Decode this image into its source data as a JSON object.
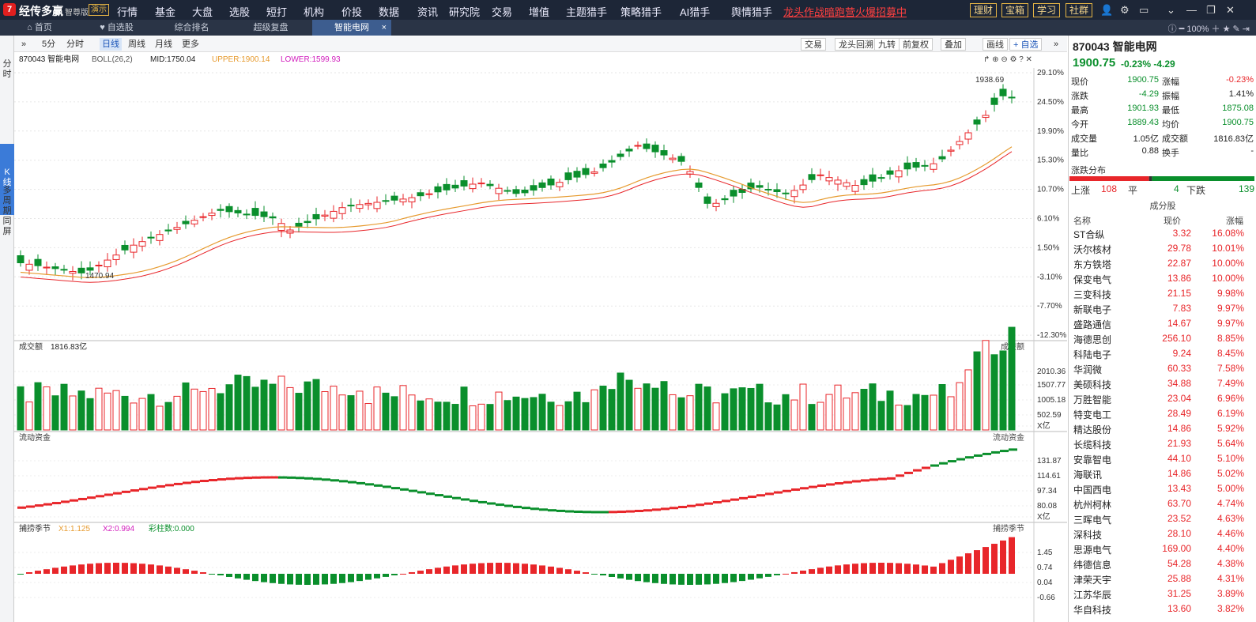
{
  "app": {
    "name": "经传多赢",
    "edition": "智尊版",
    "demo": "演示"
  },
  "menu": [
    "行情",
    "基金",
    "大盘",
    "选股",
    "短打",
    "机构",
    "价投",
    "数据",
    "资讯",
    "研究院",
    "交易",
    "增值",
    "主题猎手",
    "策略猎手",
    "AI猎手",
    "舆情猎手"
  ],
  "promo": "龙头作战暗跑营火爆招募中",
  "top_buttons": [
    "理财",
    "宝箱",
    "学习",
    "社群"
  ],
  "tabs": [
    "首页",
    "自选股",
    "综合排名",
    "超级复盘",
    "智能电网"
  ],
  "zoom": "100%",
  "left_strip": {
    "fenshi": "分时",
    "kxian": "K线",
    "duozhouqi": "多周期同屏"
  },
  "toolbar": {
    "periods": [
      "5分",
      "分时",
      "日线",
      "周线",
      "月线",
      "更多"
    ],
    "right": [
      "交易",
      "龙头回溯",
      "九转",
      "前复权",
      "叠加",
      "画线",
      "自选"
    ]
  },
  "main_legend": {
    "title": "870043 智能电网",
    "boll": "BOLL(26,2)",
    "mid": "MID:1750.04",
    "upper": "UPPER:1900.14",
    "lower": "LOWER:1599.93"
  },
  "y_axis": [
    "29.10%",
    "24.50%",
    "19.90%",
    "15.30%",
    "10.70%",
    "6.10%",
    "1.50%",
    "-3.10%",
    "-7.70%",
    "-12.30%"
  ],
  "hi_label": "1938.69",
  "lo_label": "1470.94",
  "vol": {
    "title": "成交额",
    "value": "1816.83亿",
    "axis": [
      "2010.36",
      "1507.77",
      "1005.18",
      "502.59",
      "X亿"
    ]
  },
  "flow": {
    "title": "流动资金",
    "axis": [
      "131.87",
      "114.61",
      "97.34",
      "80.08",
      "X亿"
    ]
  },
  "ind": {
    "title": "捕捞季节",
    "x1": "X1:1.125",
    "x2": "X2:0.994",
    "bar": "彩柱数:0.000",
    "axis": [
      "1.45",
      "0.74",
      "0.04",
      "-0.66"
    ]
  },
  "colors": {
    "up": "#e8262a",
    "down": "#0a8f2c",
    "accent": "#3b7bd8",
    "bg_dark": "#1d2637"
  },
  "quote": {
    "title": "870043 智能电网",
    "price": "1900.75",
    "chg_pct": "-0.23%",
    "chg": "-4.29",
    "rows": [
      {
        "l": "现价",
        "v": "1900.75",
        "l2": "涨幅",
        "v2": "-0.23%",
        "c": "green",
        "c2": "red"
      },
      {
        "l": "涨跌",
        "v": "-4.29",
        "l2": "振幅",
        "v2": "1.41%",
        "c": "green",
        "c2": "dark"
      },
      {
        "l": "最高",
        "v": "1901.93",
        "l2": "最低",
        "v2": "1875.08",
        "c": "green",
        "c2": "green"
      },
      {
        "l": "今开",
        "v": "1889.43",
        "l2": "均价",
        "v2": "1900.75",
        "c": "green",
        "c2": "green"
      },
      {
        "l": "成交量",
        "v": "1.05亿",
        "l2": "成交额",
        "v2": "1816.83亿",
        "c": "dark",
        "c2": "dark"
      },
      {
        "l": "量比",
        "v": "0.88",
        "l2": "换手",
        "v2": "-",
        "c": "dark",
        "c2": "dark"
      }
    ],
    "dist_label": "涨跌分布",
    "up_label": "上涨",
    "up": "108",
    "flat_label": "平",
    "flat": "4",
    "down_label": "下跌",
    "down": "139"
  },
  "sector": {
    "title": "成分股",
    "headers": [
      "名称",
      "现价",
      "涨幅"
    ],
    "rows": [
      [
        "ST合纵",
        "3.32",
        "16.08%"
      ],
      [
        "沃尔核材",
        "29.78",
        "10.01%"
      ],
      [
        "东方铁塔",
        "22.87",
        "10.00%"
      ],
      [
        "保变电气",
        "13.86",
        "10.00%"
      ],
      [
        "三变科技",
        "21.15",
        "9.98%"
      ],
      [
        "新联电子",
        "7.83",
        "9.97%"
      ],
      [
        "盛路通信",
        "14.67",
        "9.97%"
      ],
      [
        "海德思创",
        "256.10",
        "8.85%"
      ],
      [
        "科陆电子",
        "9.24",
        "8.45%"
      ],
      [
        "华润微",
        "60.33",
        "7.58%"
      ],
      [
        "美硕科技",
        "34.88",
        "7.49%"
      ],
      [
        "万胜智能",
        "23.04",
        "6.96%"
      ],
      [
        "特变电工",
        "28.49",
        "6.19%"
      ],
      [
        "精达股份",
        "14.86",
        "5.92%"
      ],
      [
        "长缆科技",
        "21.93",
        "5.64%"
      ],
      [
        "安靠智电",
        "44.10",
        "5.10%"
      ],
      [
        "海联讯",
        "14.86",
        "5.02%"
      ],
      [
        "中国西电",
        "13.43",
        "5.00%"
      ],
      [
        "杭州柯林",
        "63.70",
        "4.74%"
      ],
      [
        "三晖电气",
        "23.52",
        "4.63%"
      ],
      [
        "深科技",
        "28.10",
        "4.46%"
      ],
      [
        "思源电气",
        "169.00",
        "4.40%"
      ],
      [
        "纬德信息",
        "54.28",
        "4.38%"
      ],
      [
        "津荣天宇",
        "25.88",
        "4.31%"
      ],
      [
        "江苏华辰",
        "31.25",
        "3.89%"
      ],
      [
        "华自科技",
        "13.60",
        "3.82%"
      ]
    ]
  }
}
